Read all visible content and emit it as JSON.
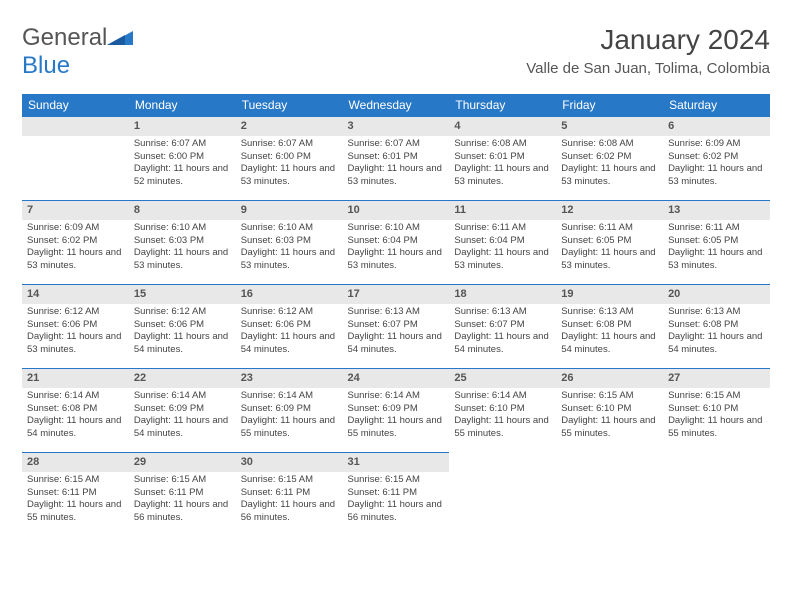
{
  "brand": {
    "part1": "General",
    "part2": "Blue"
  },
  "title": "January 2024",
  "location": "Valle de San Juan, Tolima, Colombia",
  "colors": {
    "accent": "#2878c8",
    "header_text": "#ffffff",
    "daynum_bg": "#e8e8e8",
    "body_text": "#444444",
    "background": "#ffffff"
  },
  "weekdays": [
    "Sunday",
    "Monday",
    "Tuesday",
    "Wednesday",
    "Thursday",
    "Friday",
    "Saturday"
  ],
  "start_offset": 1,
  "days": [
    {
      "n": 1,
      "sr": "6:07 AM",
      "ss": "6:00 PM",
      "dl": "11 hours and 52 minutes."
    },
    {
      "n": 2,
      "sr": "6:07 AM",
      "ss": "6:00 PM",
      "dl": "11 hours and 53 minutes."
    },
    {
      "n": 3,
      "sr": "6:07 AM",
      "ss": "6:01 PM",
      "dl": "11 hours and 53 minutes."
    },
    {
      "n": 4,
      "sr": "6:08 AM",
      "ss": "6:01 PM",
      "dl": "11 hours and 53 minutes."
    },
    {
      "n": 5,
      "sr": "6:08 AM",
      "ss": "6:02 PM",
      "dl": "11 hours and 53 minutes."
    },
    {
      "n": 6,
      "sr": "6:09 AM",
      "ss": "6:02 PM",
      "dl": "11 hours and 53 minutes."
    },
    {
      "n": 7,
      "sr": "6:09 AM",
      "ss": "6:02 PM",
      "dl": "11 hours and 53 minutes."
    },
    {
      "n": 8,
      "sr": "6:10 AM",
      "ss": "6:03 PM",
      "dl": "11 hours and 53 minutes."
    },
    {
      "n": 9,
      "sr": "6:10 AM",
      "ss": "6:03 PM",
      "dl": "11 hours and 53 minutes."
    },
    {
      "n": 10,
      "sr": "6:10 AM",
      "ss": "6:04 PM",
      "dl": "11 hours and 53 minutes."
    },
    {
      "n": 11,
      "sr": "6:11 AM",
      "ss": "6:04 PM",
      "dl": "11 hours and 53 minutes."
    },
    {
      "n": 12,
      "sr": "6:11 AM",
      "ss": "6:05 PM",
      "dl": "11 hours and 53 minutes."
    },
    {
      "n": 13,
      "sr": "6:11 AM",
      "ss": "6:05 PM",
      "dl": "11 hours and 53 minutes."
    },
    {
      "n": 14,
      "sr": "6:12 AM",
      "ss": "6:06 PM",
      "dl": "11 hours and 53 minutes."
    },
    {
      "n": 15,
      "sr": "6:12 AM",
      "ss": "6:06 PM",
      "dl": "11 hours and 54 minutes."
    },
    {
      "n": 16,
      "sr": "6:12 AM",
      "ss": "6:06 PM",
      "dl": "11 hours and 54 minutes."
    },
    {
      "n": 17,
      "sr": "6:13 AM",
      "ss": "6:07 PM",
      "dl": "11 hours and 54 minutes."
    },
    {
      "n": 18,
      "sr": "6:13 AM",
      "ss": "6:07 PM",
      "dl": "11 hours and 54 minutes."
    },
    {
      "n": 19,
      "sr": "6:13 AM",
      "ss": "6:08 PM",
      "dl": "11 hours and 54 minutes."
    },
    {
      "n": 20,
      "sr": "6:13 AM",
      "ss": "6:08 PM",
      "dl": "11 hours and 54 minutes."
    },
    {
      "n": 21,
      "sr": "6:14 AM",
      "ss": "6:08 PM",
      "dl": "11 hours and 54 minutes."
    },
    {
      "n": 22,
      "sr": "6:14 AM",
      "ss": "6:09 PM",
      "dl": "11 hours and 54 minutes."
    },
    {
      "n": 23,
      "sr": "6:14 AM",
      "ss": "6:09 PM",
      "dl": "11 hours and 55 minutes."
    },
    {
      "n": 24,
      "sr": "6:14 AM",
      "ss": "6:09 PM",
      "dl": "11 hours and 55 minutes."
    },
    {
      "n": 25,
      "sr": "6:14 AM",
      "ss": "6:10 PM",
      "dl": "11 hours and 55 minutes."
    },
    {
      "n": 26,
      "sr": "6:15 AM",
      "ss": "6:10 PM",
      "dl": "11 hours and 55 minutes."
    },
    {
      "n": 27,
      "sr": "6:15 AM",
      "ss": "6:10 PM",
      "dl": "11 hours and 55 minutes."
    },
    {
      "n": 28,
      "sr": "6:15 AM",
      "ss": "6:11 PM",
      "dl": "11 hours and 55 minutes."
    },
    {
      "n": 29,
      "sr": "6:15 AM",
      "ss": "6:11 PM",
      "dl": "11 hours and 56 minutes."
    },
    {
      "n": 30,
      "sr": "6:15 AM",
      "ss": "6:11 PM",
      "dl": "11 hours and 56 minutes."
    },
    {
      "n": 31,
      "sr": "6:15 AM",
      "ss": "6:11 PM",
      "dl": "11 hours and 56 minutes."
    }
  ],
  "labels": {
    "sunrise": "Sunrise:",
    "sunset": "Sunset:",
    "daylight": "Daylight:"
  }
}
